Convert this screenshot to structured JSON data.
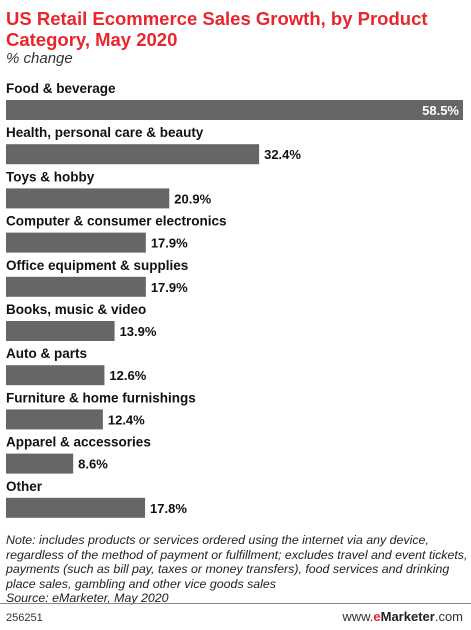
{
  "header": {
    "title": "US Retail Ecommerce Sales Growth, by Product Category, May 2020",
    "subtitle": "% change"
  },
  "chart_data": {
    "type": "bar",
    "orientation": "horizontal",
    "categories": [
      "Food & beverage",
      "Health, personal care & beauty",
      "Toys & hobby",
      "Computer & consumer electronics",
      "Office equipment & supplies",
      "Books, music & video",
      "Auto & parts",
      "Furniture & home furnishings",
      "Apparel & accessories",
      "Other"
    ],
    "values": [
      58.5,
      32.4,
      20.9,
      17.9,
      17.9,
      13.9,
      12.6,
      12.4,
      8.6,
      17.8
    ],
    "value_labels": [
      "58.5%",
      "32.4%",
      "20.9%",
      "17.9%",
      "17.9%",
      "13.9%",
      "12.6%",
      "12.4%",
      "8.6%",
      "17.8%"
    ],
    "title": "US Retail Ecommerce Sales Growth, by Product Category, May 2020",
    "subtitle": "% change",
    "xlim": [
      0,
      58.5
    ],
    "bar_color": "#666666",
    "grid": false,
    "legend": "none"
  },
  "footer": {
    "note": "Note: includes products or services ordered using the internet via any device, regardless of the method of payment or fulfillment; excludes travel and event tickets, payments (such as bill pay, taxes or money transfers), food services and drinking place sales, gambling and other vice goods sales",
    "source": "Source: eMarketer, May 2020",
    "chart_id": "256251",
    "brand_prefix": "www.",
    "brand_accent": "e",
    "brand_name": "Marketer",
    "brand_suffix": ".com"
  }
}
